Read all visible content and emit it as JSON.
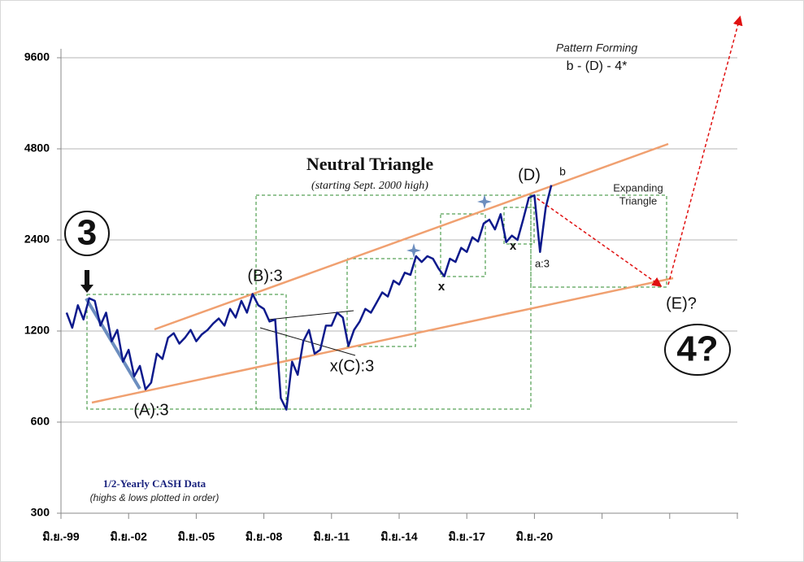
{
  "chart_data": {
    "type": "line",
    "log_scale": true,
    "grid": true,
    "color": "#0d1a8c",
    "ylim": [
      300,
      9600
    ],
    "yticks": [
      300,
      600,
      1200,
      2400,
      4800,
      9600
    ],
    "xlim": [
      1999.5,
      2029.5
    ],
    "xticks": [
      {
        "value": 1999.5,
        "label": "มิ.ย.-99"
      },
      {
        "value": 2002.5,
        "label": "มิ.ย.-02"
      },
      {
        "value": 2005.5,
        "label": "มิ.ย.-05"
      },
      {
        "value": 2008.5,
        "label": "มิ.ย.-08"
      },
      {
        "value": 2011.5,
        "label": "มิ.ย.-11"
      },
      {
        "value": 2014.5,
        "label": "มิ.ย.-14"
      },
      {
        "value": 2017.5,
        "label": "มิ.ย.-17"
      },
      {
        "value": 2020.5,
        "label": "มิ.ย.-20"
      },
      {
        "value": 2023.5,
        "label": null
      },
      {
        "value": 2026.5,
        "label": null
      },
      {
        "value": 2029.5,
        "label": null
      }
    ],
    "x": [
      1999.75,
      2000,
      2000.25,
      2000.5,
      2000.75,
      2001,
      2001.25,
      2001.5,
      2001.75,
      2002,
      2002.25,
      2002.5,
      2002.75,
      2003,
      2003.25,
      2003.5,
      2003.75,
      2004,
      2004.25,
      2004.5,
      2004.75,
      2005,
      2005.25,
      2005.5,
      2005.75,
      2006,
      2006.25,
      2006.5,
      2006.75,
      2007,
      2007.25,
      2007.5,
      2007.75,
      2008,
      2008.25,
      2008.5,
      2008.75,
      2009,
      2009.25,
      2009.5,
      2009.75,
      2010,
      2010.25,
      2010.5,
      2010.75,
      2011,
      2011.25,
      2011.5,
      2011.75,
      2012,
      2012.25,
      2012.5,
      2012.75,
      2013,
      2013.25,
      2013.5,
      2013.75,
      2014,
      2014.25,
      2014.5,
      2014.75,
      2015,
      2015.25,
      2015.5,
      2015.75,
      2016,
      2016.25,
      2016.5,
      2016.75,
      2017,
      2017.25,
      2017.5,
      2017.75,
      2018,
      2018.25,
      2018.5,
      2018.75,
      2019,
      2019.25,
      2019.5,
      2019.75,
      2020,
      2020.25,
      2020.5,
      2020.75,
      2021,
      2021.25
    ],
    "values": [
      1380,
      1230,
      1460,
      1310,
      1540,
      1510,
      1250,
      1380,
      1110,
      1210,
      950,
      1040,
      850,
      920,
      770,
      810,
      1010,
      970,
      1140,
      1180,
      1090,
      1140,
      1210,
      1110,
      1170,
      1210,
      1270,
      1320,
      1250,
      1420,
      1330,
      1510,
      1380,
      1590,
      1460,
      1420,
      1290,
      1310,
      720,
      660,
      950,
      860,
      1110,
      1210,
      1010,
      1040,
      1250,
      1250,
      1380,
      1330,
      1070,
      1210,
      1290,
      1420,
      1380,
      1490,
      1610,
      1560,
      1760,
      1710,
      1870,
      1840,
      2120,
      2030,
      2120,
      2080,
      1930,
      1820,
      2080,
      2030,
      2260,
      2190,
      2450,
      2370,
      2720,
      2800,
      2600,
      2920,
      2360,
      2480,
      2400,
      2800,
      3310,
      3370,
      2190,
      3070,
      3640
    ],
    "annotations": [
      "Pattern Forming",
      "b - (D) - 4*",
      "Neutral Triangle",
      "(starting Sept. 2000 high)",
      "(D)",
      "b",
      "Expanding",
      "Triangle",
      "3",
      "(B):3",
      "x",
      "x",
      "a:3",
      "(E)?",
      "4?",
      "x(C):3",
      "(A):3",
      "1/2-Yearly CASH Data",
      "(highs & lows plotted in order)"
    ]
  }
}
